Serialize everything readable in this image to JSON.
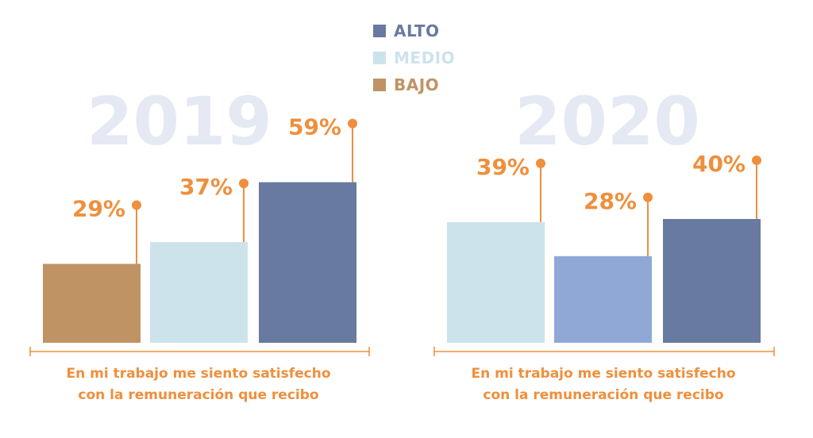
{
  "legend": [
    {
      "label": "ALTO",
      "color": "#697aa0"
    },
    {
      "label": "MEDIO",
      "color": "#cde3ec"
    },
    {
      "label": "BAJO",
      "color": "#c09365"
    }
  ],
  "colors": {
    "accent": "#ef8f3c",
    "year_watermark": "#e4e9f3"
  },
  "chart_data": [
    {
      "type": "bar",
      "year_label": "2019",
      "categories": [
        "BAJO",
        "MEDIO",
        "ALTO"
      ],
      "values": [
        29,
        37,
        59
      ],
      "value_labels": [
        "29%",
        "37%",
        "59%"
      ],
      "bar_colors": [
        "#c09365",
        "#cde3ec",
        "#697aa0"
      ],
      "caption_line1": "En mi trabajo me siento satisfecho",
      "caption_line2": "con la remuneración que recibo",
      "ylim": [
        0,
        100
      ]
    },
    {
      "type": "bar",
      "year_label": "2020",
      "categories": [
        "MEDIO",
        "",
        "ALTO"
      ],
      "values": [
        39,
        28,
        40
      ],
      "value_labels": [
        "39%",
        "28%",
        "40%"
      ],
      "bar_colors": [
        "#cde3ec",
        "#90a8d6",
        "#697aa0"
      ],
      "caption_line1": "En mi trabajo me siento satisfecho",
      "caption_line2": "con la remuneración que recibo",
      "ylim": [
        0,
        100
      ]
    }
  ]
}
